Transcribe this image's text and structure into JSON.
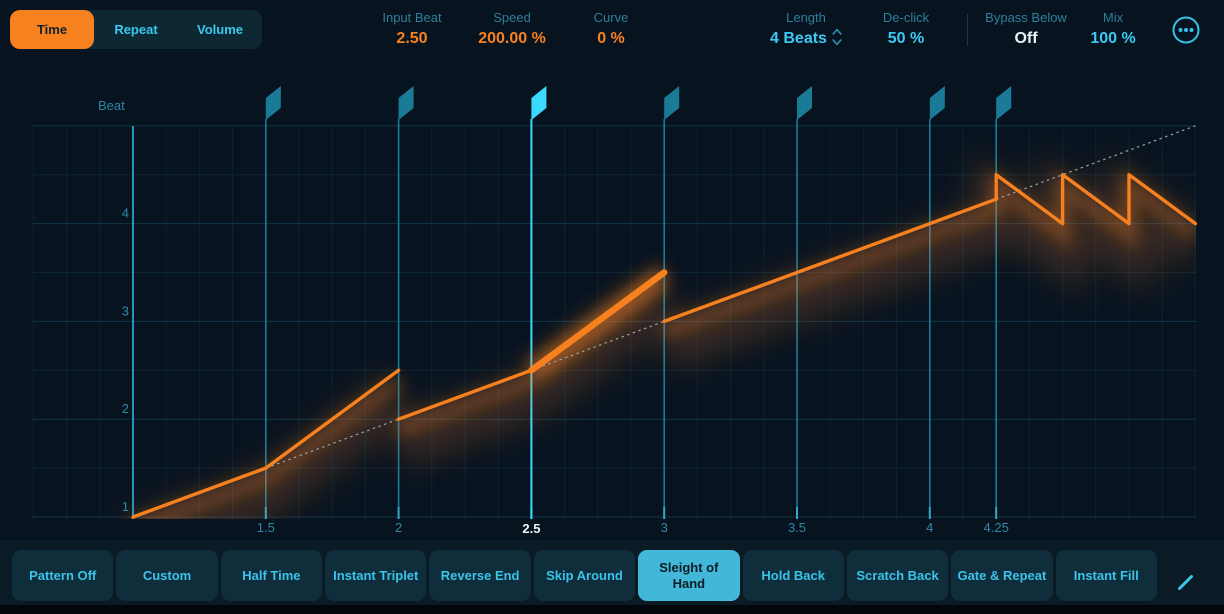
{
  "tabs": {
    "items": [
      {
        "label": "Time",
        "selected": true
      },
      {
        "label": "Repeat",
        "selected": false
      },
      {
        "label": "Volume",
        "selected": false
      }
    ]
  },
  "params": [
    {
      "label": "Input Beat",
      "value": "2.50",
      "color": "orange"
    },
    {
      "label": "Speed",
      "value": "200.00 %",
      "color": "orange"
    },
    {
      "label": "Curve",
      "value": "0 %",
      "color": "orange"
    },
    {
      "label": "Length",
      "value": "4 Beats",
      "color": "cyan",
      "stepper": true
    },
    {
      "label": "De-click",
      "value": "50 %",
      "color": "cyan"
    },
    {
      "label": "Bypass Below",
      "value": "Off",
      "color": "white"
    },
    {
      "label": "Mix",
      "value": "100 %",
      "color": "cyan"
    }
  ],
  "more_button": {
    "icon": "ellipsis-circle-icon"
  },
  "chart_data": {
    "type": "line",
    "axis_label": "Beat",
    "xlim": [
      0.625,
      5.0
    ],
    "ylim": [
      1.0,
      5.0
    ],
    "grid": {
      "x_step": 0.125,
      "y_step": 0.5
    },
    "x_ticks": [
      {
        "beat": 1.5,
        "label": "1.5",
        "highlight": false
      },
      {
        "beat": 2,
        "label": "2",
        "highlight": false
      },
      {
        "beat": 2.5,
        "label": "2.5",
        "highlight": true
      },
      {
        "beat": 3,
        "label": "3",
        "highlight": false
      },
      {
        "beat": 3.5,
        "label": "3.5",
        "highlight": false
      },
      {
        "beat": 4,
        "label": "4",
        "highlight": false
      },
      {
        "beat": 4.25,
        "label": "4.25",
        "highlight": false
      }
    ],
    "y_ticks": [
      {
        "value": 1,
        "label": "1"
      },
      {
        "value": 2,
        "label": "2"
      },
      {
        "value": 3,
        "label": "3"
      },
      {
        "value": 4,
        "label": "4"
      }
    ],
    "start_line_beat": 1,
    "flags": {
      "beats": [
        1.5,
        2,
        2.5,
        3,
        3.5,
        4,
        4.25
      ],
      "active": 2.5
    },
    "segments": [
      {
        "id": "seg-1",
        "active": false,
        "points": [
          [
            1,
            1
          ],
          [
            1.5,
            1.5
          ],
          [
            2,
            2.5
          ]
        ]
      },
      {
        "id": "seg-2",
        "active": false,
        "points": [
          [
            2,
            2
          ],
          [
            2.5,
            2.5
          ]
        ]
      },
      {
        "id": "seg-3",
        "active": true,
        "points": [
          [
            2.5,
            2.5
          ],
          [
            3,
            3.5
          ]
        ]
      },
      {
        "id": "seg-4",
        "active": false,
        "points": [
          [
            3,
            3
          ],
          [
            4.25,
            4.25
          ],
          [
            4.25,
            4.5
          ],
          [
            4.5,
            4
          ],
          [
            4.5,
            4.5
          ],
          [
            4.75,
            4
          ],
          [
            4.75,
            4.5
          ],
          [
            5,
            4
          ]
        ]
      }
    ],
    "dashed_guides": [
      [
        [
          1.5,
          1.5
        ],
        [
          2,
          2
        ]
      ],
      [
        [
          2.5,
          2.5
        ],
        [
          3,
          3
        ]
      ],
      [
        [
          4.25,
          4.25
        ],
        [
          5,
          5
        ]
      ]
    ]
  },
  "presets": {
    "items": [
      {
        "label": "Pattern Off",
        "selected": false
      },
      {
        "label": "Custom",
        "selected": false
      },
      {
        "label": "Half Time",
        "selected": false
      },
      {
        "label": "Instant Triplet",
        "selected": false
      },
      {
        "label": "Reverse End",
        "selected": false
      },
      {
        "label": "Skip Around",
        "selected": false
      },
      {
        "label": "Sleight of Hand",
        "selected": true
      },
      {
        "label": "Hold Back",
        "selected": false
      },
      {
        "label": "Scratch Back",
        "selected": false
      },
      {
        "label": "Gate & Repeat",
        "selected": false
      },
      {
        "label": "Instant Fill",
        "selected": false
      }
    ],
    "edit_icon": "pencil-icon"
  },
  "colors": {
    "background": "#081320",
    "accent_orange": "#f8811f",
    "accent_cyan": "#3dc9f0",
    "value_white": "#e9f2f6",
    "flag_active": "#3cd9ff",
    "flag_inactive": "#1a7b98",
    "grid": "#2a8ab0",
    "dashed_guide": "#9ba3ab"
  }
}
